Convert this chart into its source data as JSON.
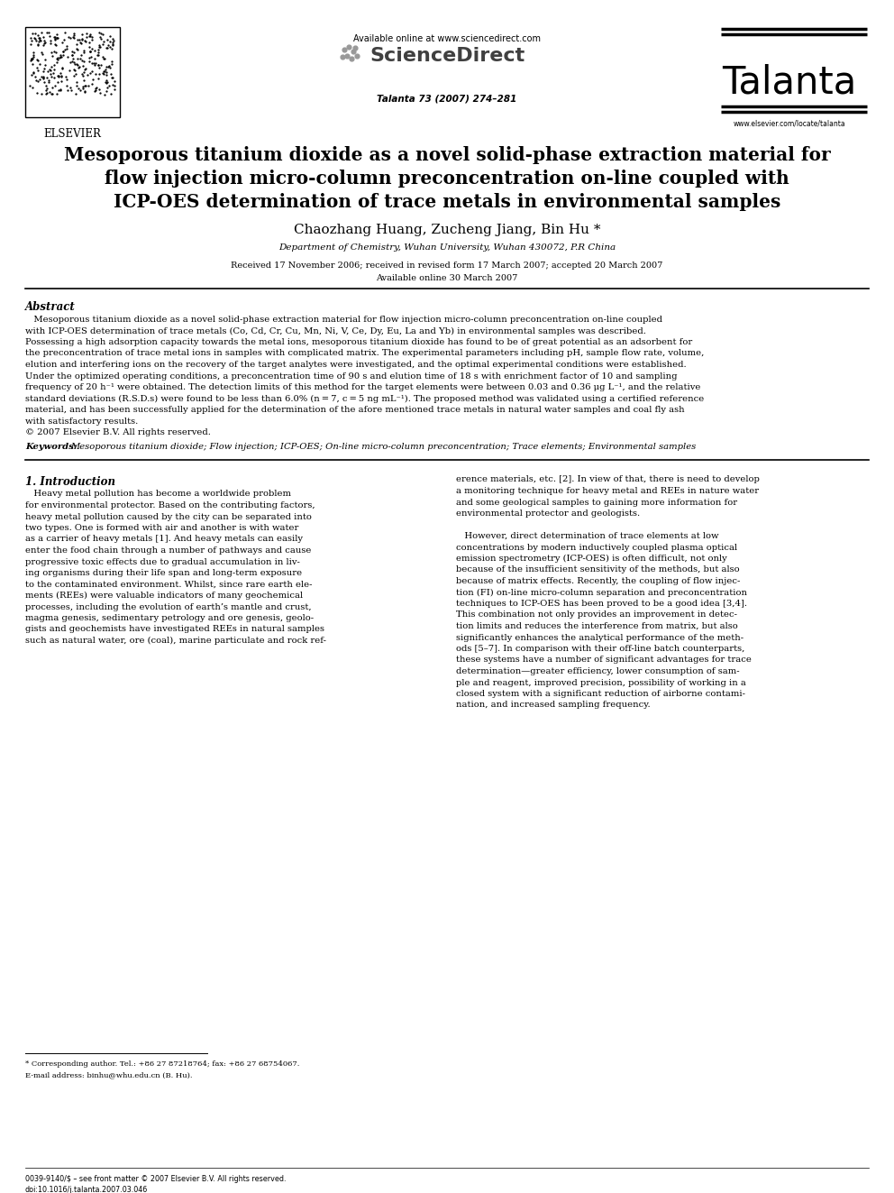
{
  "bg_color": "#ffffff",
  "header": {
    "available_online_text": "Available online at www.sciencedirect.com",
    "sciencedirect_text": "ScienceDirect",
    "journal_name": "Talanta",
    "journal_ref": "Talanta 73 (2007) 274–281",
    "journal_url": "www.elsevier.com/locate/talanta",
    "elsevier_text": "ELSEVIER"
  },
  "title_line1": "Mesoporous titanium dioxide as a novel solid-phase extraction material for",
  "title_line2": "flow injection micro-column preconcentration on-line coupled with",
  "title_line3": "ICP-OES determination of trace metals in environmental samples",
  "authors": "Chaozhang Huang, Zucheng Jiang, Bin Hu *",
  "affiliation": "Department of Chemistry, Wuhan University, Wuhan 430072, P.R China",
  "received_text": "Received 17 November 2006; received in revised form 17 March 2007; accepted 20 March 2007",
  "available_text": "Available online 30 March 2007",
  "abstract_heading": "Abstract",
  "keywords_label": "Keywords:",
  "keywords_text": "Mesoporous titanium dioxide; Flow injection; ICP-OES; On-line micro-column preconcentration; Trace elements; Environmental samples",
  "section1_heading": "1. Introduction",
  "footnote_star": "* Corresponding author. Tel.: +86 27 87218764; fax: +86 27 68754067.",
  "footnote_email": "E-mail address: binhu@whu.edu.cn (B. Hu).",
  "footer_left": "0039-9140/$ – see front matter © 2007 Elsevier B.V. All rights reserved.",
  "footer_doi": "doi:10.1016/j.talanta.2007.03.046",
  "abstract_lines": [
    "   Mesoporous titanium dioxide as a novel solid-phase extraction material for flow injection micro-column preconcentration on-line coupled",
    "with ICP-OES determination of trace metals (Co, Cd, Cr, Cu, Mn, Ni, V, Ce, Dy, Eu, La and Yb) in environmental samples was described.",
    "Possessing a high adsorption capacity towards the metal ions, mesoporous titanium dioxide has found to be of great potential as an adsorbent for",
    "the preconcentration of trace metal ions in samples with complicated matrix. The experimental parameters including pH, sample flow rate, volume,",
    "elution and interfering ions on the recovery of the target analytes were investigated, and the optimal experimental conditions were established.",
    "Under the optimized operating conditions, a preconcentration time of 90 s and elution time of 18 s with enrichment factor of 10 and sampling",
    "frequency of 20 h⁻¹ were obtained. The detection limits of this method for the target elements were between 0.03 and 0.36 μg L⁻¹, and the relative",
    "standard deviations (R.S.D.s) were found to be less than 6.0% (n = 7, c = 5 ng mL⁻¹). The proposed method was validated using a certified reference",
    "material, and has been successfully applied for the determination of the afore mentioned trace metals in natural water samples and coal fly ash",
    "with satisfactory results.",
    "© 2007 Elsevier B.V. All rights reserved."
  ],
  "left_col_lines": [
    "   Heavy metal pollution has become a worldwide problem",
    "for environmental protector. Based on the contributing factors,",
    "heavy metal pollution caused by the city can be separated into",
    "two types. One is formed with air and another is with water",
    "as a carrier of heavy metals [1]. And heavy metals can easily",
    "enter the food chain through a number of pathways and cause",
    "progressive toxic effects due to gradual accumulation in liv-",
    "ing organisms during their life span and long-term exposure",
    "to the contaminated environment. Whilst, since rare earth ele-",
    "ments (REEs) were valuable indicators of many geochemical",
    "processes, including the evolution of earth’s mantle and crust,",
    "magma genesis, sedimentary petrology and ore genesis, geolo-",
    "gists and geochemists have investigated REEs in natural samples",
    "such as natural water, ore (coal), marine particulate and rock ref-"
  ],
  "right_col_lines": [
    "erence materials, etc. [2]. In view of that, there is need to develop",
    "a monitoring technique for heavy metal and REEs in nature water",
    "and some geological samples to gaining more information for",
    "environmental protector and geologists.",
    "",
    "   However, direct determination of trace elements at low",
    "concentrations by modern inductively coupled plasma optical",
    "emission spectrometry (ICP-OES) is often difficult, not only",
    "because of the insufficient sensitivity of the methods, but also",
    "because of matrix effects. Recently, the coupling of flow injec-",
    "tion (FI) on-line micro-column separation and preconcentration",
    "techniques to ICP-OES has been proved to be a good idea [3,4].",
    "This combination not only provides an improvement in detec-",
    "tion limits and reduces the interference from matrix, but also",
    "significantly enhances the analytical performance of the meth-",
    "ods [5–7]. In comparison with their off-line batch counterparts,",
    "these systems have a number of significant advantages for trace",
    "determination—greater efficiency, lower consumption of sam-",
    "ple and reagent, improved precision, possibility of working in a",
    "closed system with a significant reduction of airborne contami-",
    "nation, and increased sampling frequency."
  ]
}
